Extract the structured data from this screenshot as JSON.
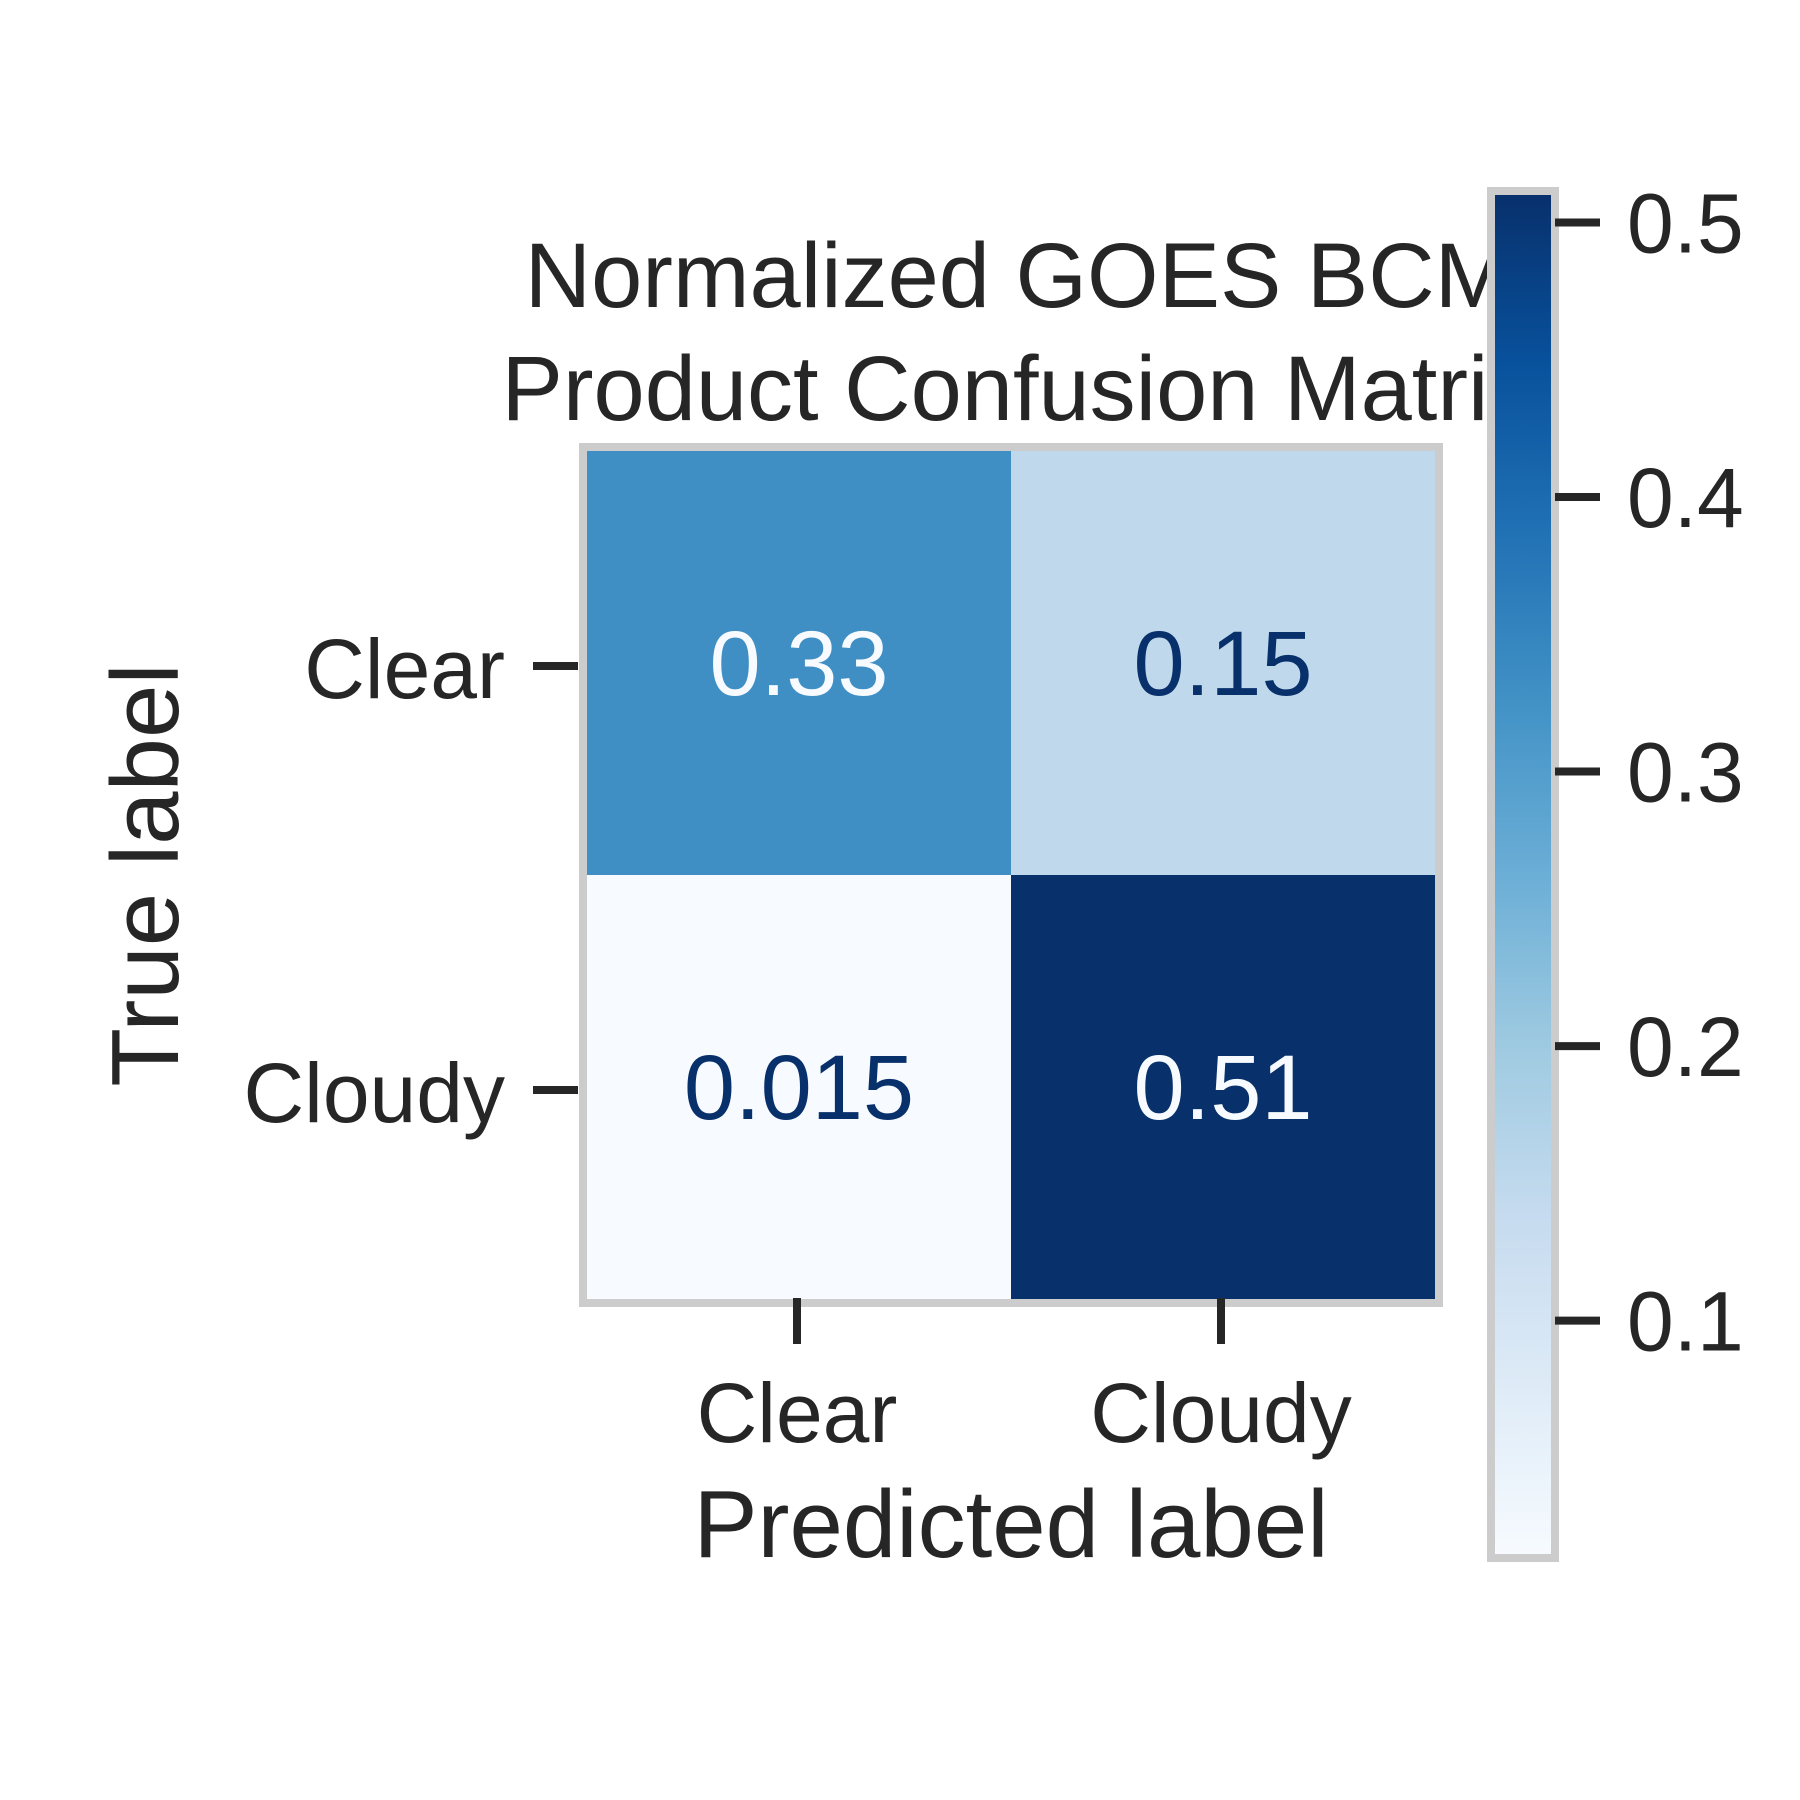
{
  "chart_data": {
    "type": "heatmap",
    "title_lines": [
      "Normalized GOES BCM",
      "Product Confusion Matrix"
    ],
    "xlabel": "Predicted label",
    "ylabel": "True label",
    "x_categories": [
      "Clear",
      "Cloudy"
    ],
    "y_categories": [
      "Clear",
      "Cloudy"
    ],
    "values": [
      [
        0.33,
        0.15
      ],
      [
        0.015,
        0.51
      ]
    ],
    "value_labels": [
      [
        "0.33",
        "0.15"
      ],
      [
        "0.015",
        "0.51"
      ]
    ],
    "colormap": "Blues",
    "colorbar": {
      "vmin": 0.015,
      "vmax": 0.51,
      "ticks": [
        0.1,
        0.2,
        0.3,
        0.4,
        0.5
      ],
      "tick_labels": [
        "0.1",
        "0.2",
        "0.3",
        "0.4",
        "0.5"
      ]
    },
    "grid": false
  },
  "colors": {
    "text": "#262626",
    "frame": "#cccccc",
    "cell_text_light": "#f7fbff",
    "cell_text_dark": "#08306b"
  }
}
